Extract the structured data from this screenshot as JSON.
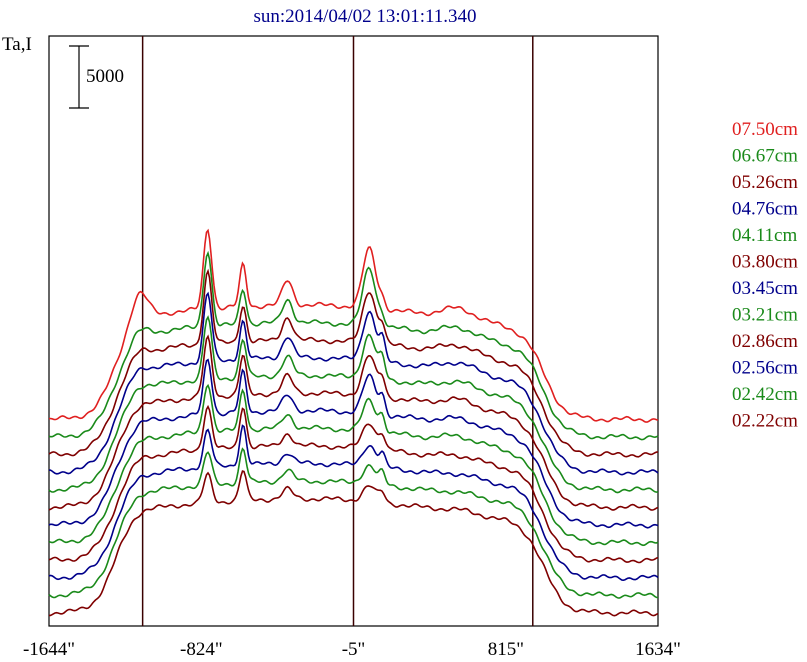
{
  "chart_data": {
    "type": "line",
    "title": "sun:2014/04/02 13:01:11.340",
    "ylabel": "Ta,I",
    "scale_bar_label": "5000",
    "x_ticks": [
      "-1644\"",
      "-824\"",
      "-5\"",
      "815\"",
      "1634\""
    ],
    "xlim": [
      -1644,
      1634
    ],
    "vertical_lines_at": [
      -1140,
      -5,
      960
    ],
    "grid": false,
    "legend_placement": "right",
    "spectrum_offset_step": 5000,
    "series": [
      {
        "name": "07.50cm",
        "color": "#e02020",
        "features": {
          "limb_hump": 0.95,
          "peak1": 2.6,
          "peak2": 1.35,
          "peak3": 0.8,
          "peak4": 1.9,
          "peak4b": 0.25,
          "bump5": 0.35
        }
      },
      {
        "name": "06.67cm",
        "color": "#1a8a1a",
        "features": {
          "limb_hump": 0.3,
          "peak1": 2.45,
          "peak2": 1.15,
          "peak3": 0.75,
          "peak4": 1.85,
          "peak4b": 0.25,
          "bump5": 0.3
        }
      },
      {
        "name": "05.26cm",
        "color": "#7f0000",
        "features": {
          "limb_hump": 0.2,
          "peak1": 2.35,
          "peak2": 1.2,
          "peak3": 0.75,
          "peak4": 1.7,
          "peak4b": 0.55,
          "bump5": 0.3
        }
      },
      {
        "name": "04.76cm",
        "color": "#00008b",
        "features": {
          "limb_hump": 0.2,
          "peak1": 2.2,
          "peak2": 1.25,
          "peak3": 0.7,
          "peak4": 1.6,
          "peak4b": 0.65,
          "bump5": 0.3
        }
      },
      {
        "name": "04.11cm",
        "color": "#1a8a1a",
        "features": {
          "limb_hump": 0.2,
          "peak1": 2.0,
          "peak2": 1.2,
          "peak3": 0.6,
          "peak4": 1.4,
          "peak4b": 0.6,
          "bump5": 0.25
        }
      },
      {
        "name": "03.80cm",
        "color": "#7f0000",
        "features": {
          "limb_hump": 0.15,
          "peak1": 1.9,
          "peak2": 1.25,
          "peak3": 0.55,
          "peak4": 1.3,
          "peak4b": 0.55,
          "bump5": 0.25
        }
      },
      {
        "name": "03.45cm",
        "color": "#00008b",
        "features": {
          "limb_hump": 0.15,
          "peak1": 1.8,
          "peak2": 1.3,
          "peak3": 0.5,
          "peak4": 1.2,
          "peak4b": 0.55,
          "bump5": 0.2
        }
      },
      {
        "name": "03.21cm",
        "color": "#1a8a1a",
        "features": {
          "limb_hump": 0.1,
          "peak1": 1.6,
          "peak2": 1.3,
          "peak3": 0.45,
          "peak4": 1.0,
          "peak4b": 0.5,
          "bump5": 0.2
        }
      },
      {
        "name": "02.86cm",
        "color": "#7f0000",
        "features": {
          "limb_hump": 0.1,
          "peak1": 1.4,
          "peak2": 1.35,
          "peak3": 0.4,
          "peak4": 0.85,
          "peak4b": 0.45,
          "bump5": 0.15
        }
      },
      {
        "name": "02.56cm",
        "color": "#00008b",
        "features": {
          "limb_hump": 0.1,
          "peak1": 1.2,
          "peak2": 1.3,
          "peak3": 0.35,
          "peak4": 0.7,
          "peak4b": 0.4,
          "bump5": 0.12
        }
      },
      {
        "name": "02.42cm",
        "color": "#1a8a1a",
        "features": {
          "limb_hump": 0.1,
          "peak1": 1.05,
          "peak2": 1.1,
          "peak3": 0.35,
          "peak4": 0.6,
          "peak4b": 0.35,
          "bump5": 0.1
        }
      },
      {
        "name": "02.22cm",
        "color": "#7f0000",
        "features": {
          "limb_hump": 0.1,
          "peak1": 0.9,
          "peak2": 0.95,
          "peak3": 0.3,
          "peak4": 0.5,
          "peak4b": 0.3,
          "bump5": 0.1
        }
      }
    ]
  },
  "colors": {
    "frame": "#000000",
    "vertical_line": "#3a0000",
    "title": "#00008b"
  }
}
